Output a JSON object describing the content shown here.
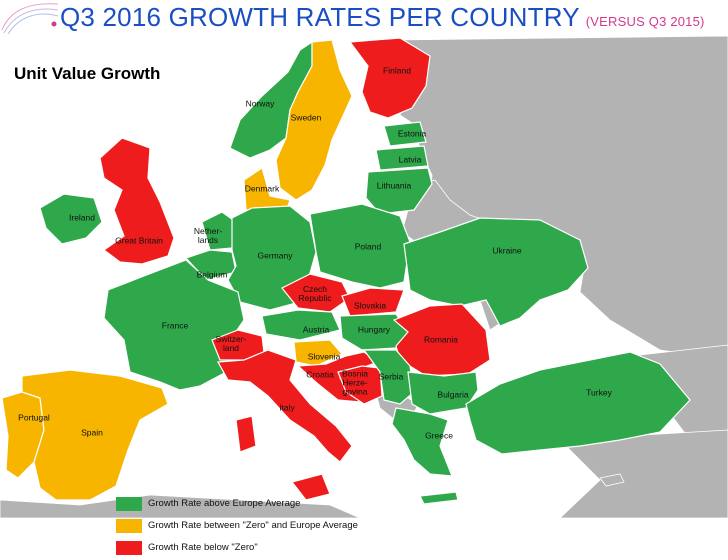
{
  "header": {
    "title": "Q3 2016 GROWTH RATES PER COUNTRY",
    "subtitle": "(VERSUS Q3 2015)"
  },
  "section_title": "Unit Value Growth",
  "colors": {
    "above": "#2ea84a",
    "between": "#f7b500",
    "below": "#ee1c1c",
    "other_land": "#b3b3b3",
    "sea": "#ffffff",
    "title": "#1a4fc4",
    "subtitle": "#d13a8c"
  },
  "legend": [
    {
      "category": "above",
      "label": "Growth Rate above Europe Average"
    },
    {
      "category": "between",
      "label": "Growth Rate between \"Zero\" and Europe Average"
    },
    {
      "category": "below",
      "label": "Growth Rate below \"Zero\""
    }
  ],
  "countries": [
    {
      "id": "norway",
      "label": "Norway",
      "category": "above"
    },
    {
      "id": "sweden",
      "label": "Sweden",
      "category": "between"
    },
    {
      "id": "finland",
      "label": "Finland",
      "category": "below"
    },
    {
      "id": "estonia",
      "label": "Estonia",
      "category": "above"
    },
    {
      "id": "latvia",
      "label": "Latvia",
      "category": "above"
    },
    {
      "id": "lithuania",
      "label": "Lithuania",
      "category": "above"
    },
    {
      "id": "denmark",
      "label": "Denmark",
      "category": "between"
    },
    {
      "id": "ireland",
      "label": "Ireland",
      "category": "above"
    },
    {
      "id": "great-britain",
      "label": "Great Britain",
      "category": "below"
    },
    {
      "id": "netherlands",
      "label": "Nether-\nlands",
      "category": "above"
    },
    {
      "id": "belgium",
      "label": "Belgium",
      "category": "above"
    },
    {
      "id": "germany",
      "label": "Germany",
      "category": "above"
    },
    {
      "id": "poland",
      "label": "Poland",
      "category": "above"
    },
    {
      "id": "ukraine",
      "label": "Ukraine",
      "category": "above"
    },
    {
      "id": "france",
      "label": "France",
      "category": "above"
    },
    {
      "id": "czech-republic",
      "label": "Czech\nRepublic",
      "category": "below"
    },
    {
      "id": "slovakia",
      "label": "Slovakia",
      "category": "below"
    },
    {
      "id": "austria",
      "label": "Austria",
      "category": "above"
    },
    {
      "id": "hungary",
      "label": "Hungary",
      "category": "above"
    },
    {
      "id": "romania",
      "label": "Romania",
      "category": "below"
    },
    {
      "id": "switzerland",
      "label": "Switzer-\nland",
      "category": "below"
    },
    {
      "id": "slovenia",
      "label": "Slovenia",
      "category": "between"
    },
    {
      "id": "croatia",
      "label": "Croatia",
      "category": "below"
    },
    {
      "id": "bosnia",
      "label": "Bosnia\nHerze-\ngovina",
      "category": "below"
    },
    {
      "id": "serbia",
      "label": "Serbia",
      "category": "above"
    },
    {
      "id": "bulgaria",
      "label": "Bulgaria",
      "category": "above"
    },
    {
      "id": "italy",
      "label": "Italy",
      "category": "below"
    },
    {
      "id": "portugal",
      "label": "Portugal",
      "category": "between"
    },
    {
      "id": "spain",
      "label": "Spain",
      "category": "between"
    },
    {
      "id": "greece",
      "label": "Greece",
      "category": "above"
    },
    {
      "id": "turkey",
      "label": "Turkey",
      "category": "above"
    }
  ]
}
